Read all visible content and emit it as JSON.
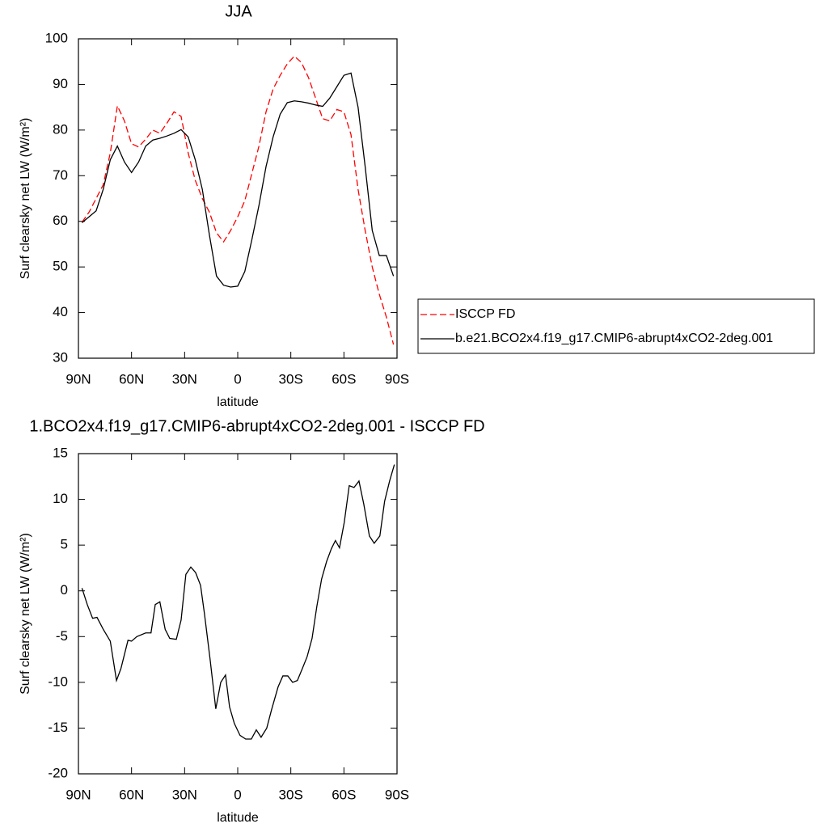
{
  "chart_data": [
    {
      "type": "line",
      "title": "JJA",
      "xlabel": "latitude",
      "ylabel": "Surf clearsky net LW (W/m²)",
      "x": [
        88,
        84,
        80,
        76,
        72,
        68,
        64,
        60,
        56,
        52,
        48,
        44,
        40,
        36,
        32,
        28,
        24,
        20,
        16,
        12,
        8,
        4,
        0,
        -4,
        -8,
        -12,
        -16,
        -20,
        -24,
        -28,
        -32,
        -36,
        -40,
        -44,
        -48,
        -52,
        -56,
        -60,
        -64,
        -68,
        -72,
        -76,
        -80,
        -84,
        -88
      ],
      "series": [
        {
          "name": "ISCCP FD",
          "color": "#ff0000",
          "line_style": "dashed",
          "values": [
            59.8,
            62,
            65,
            68,
            75,
            85.3,
            82,
            77,
            76.3,
            78,
            80,
            79.3,
            81.5,
            84,
            83,
            75,
            69,
            65,
            62,
            57.5,
            55.5,
            58,
            61,
            64.5,
            70.5,
            76.5,
            84,
            89,
            92,
            94.5,
            96.2,
            94.8,
            91.5,
            87,
            82.5,
            82,
            84.5,
            84,
            79,
            67,
            58,
            50,
            44,
            39,
            33
          ]
        },
        {
          "name": "b.e21.BCO2x4.f19_g17.CMIP6-abrupt4xCO2-2deg.001",
          "color": "#000000",
          "line_style": "solid",
          "values": [
            59.7,
            61,
            62.3,
            67,
            73.5,
            76.5,
            73,
            70.7,
            73,
            76.5,
            77.8,
            78.2,
            78.7,
            79.3,
            80.1,
            78.5,
            73.5,
            67,
            57,
            48,
            46,
            45.6,
            45.8,
            49,
            56,
            63.5,
            72,
            78.5,
            83.5,
            86,
            86.4,
            86.2,
            85.9,
            85.5,
            85.2,
            87,
            89.5,
            92,
            92.5,
            85,
            72,
            58,
            52.5,
            52.5,
            48
          ]
        }
      ],
      "xlim": [
        90,
        -90
      ],
      "xticks": [
        {
          "value": 90,
          "label": "90N"
        },
        {
          "value": 60,
          "label": "60N"
        },
        {
          "value": 30,
          "label": "30N"
        },
        0,
        {
          "value": -30,
          "label": "30S"
        },
        {
          "value": -60,
          "label": "60S"
        },
        {
          "value": -90,
          "label": "90S"
        }
      ],
      "ylim": [
        30,
        100
      ],
      "yticks": [
        30,
        40,
        50,
        60,
        70,
        80,
        90,
        100
      ],
      "legend": "right"
    },
    {
      "type": "line",
      "title": "1.BCO2x4.f19_g17.CMIP6-abrupt4xCO2-2deg.001 - ISCCP FD",
      "xlabel": "latitude",
      "ylabel": "Surf clearsky net LW (W/m²)",
      "x": [
        88,
        85,
        82,
        79.5,
        76,
        72,
        68.5,
        66,
        62,
        60,
        57,
        52,
        49,
        46.6,
        44,
        41,
        38.4,
        34.7,
        32,
        29.3,
        26.5,
        23.8,
        21,
        18.8,
        15.6,
        12.4,
        9.6,
        6.9,
        4.6,
        1.9,
        -1.3,
        -4.5,
        -7.7,
        -10.5,
        -13.2,
        -16.4,
        -19.1,
        -22.8,
        -25.5,
        -28.3,
        -31,
        -33.7,
        -36.5,
        -39.2,
        -42,
        -44.7,
        -47.4,
        -50.2,
        -52.9,
        -55.2,
        -57.5,
        -60.2,
        -63,
        -65.7,
        -68.5,
        -71.2,
        -74.4,
        -77.1,
        -80.3,
        -83,
        -85.8,
        -88.5
      ],
      "values": [
        0.3,
        -1.5,
        -3,
        -2.9,
        -4.2,
        -5.5,
        -9.8,
        -8.5,
        -5.4,
        -5.5,
        -5,
        -4.6,
        -4.6,
        -1.5,
        -1.2,
        -4.2,
        -5.2,
        -5.3,
        -3.2,
        1.8,
        2.6,
        2,
        0.6,
        -2.5,
        -7.5,
        -12.9,
        -10,
        -9.2,
        -12.7,
        -14.5,
        -15.8,
        -16.2,
        -16.2,
        -15.2,
        -16,
        -15,
        -13,
        -10.5,
        -9.3,
        -9.3,
        -10,
        -9.8,
        -8.5,
        -7.2,
        -5.2,
        -1.7,
        1.3,
        3.2,
        4.6,
        5.5,
        4.7,
        7.5,
        11.5,
        11.3,
        12,
        9.5,
        6,
        5.2,
        6,
        9.8,
        12,
        13.8
      ],
      "color": "#000000",
      "line_style": "solid",
      "xlim": [
        90,
        -90
      ],
      "xticks": [
        {
          "value": 90,
          "label": "90N"
        },
        {
          "value": 60,
          "label": "60N"
        },
        {
          "value": 30,
          "label": "30N"
        },
        0,
        {
          "value": -30,
          "label": "30S"
        },
        {
          "value": -60,
          "label": "60S"
        },
        {
          "value": -90,
          "label": "90S"
        }
      ],
      "ylim": [
        -20,
        15
      ],
      "yticks": [
        -20,
        -15,
        -10,
        -5,
        0,
        5,
        10,
        15
      ]
    }
  ]
}
